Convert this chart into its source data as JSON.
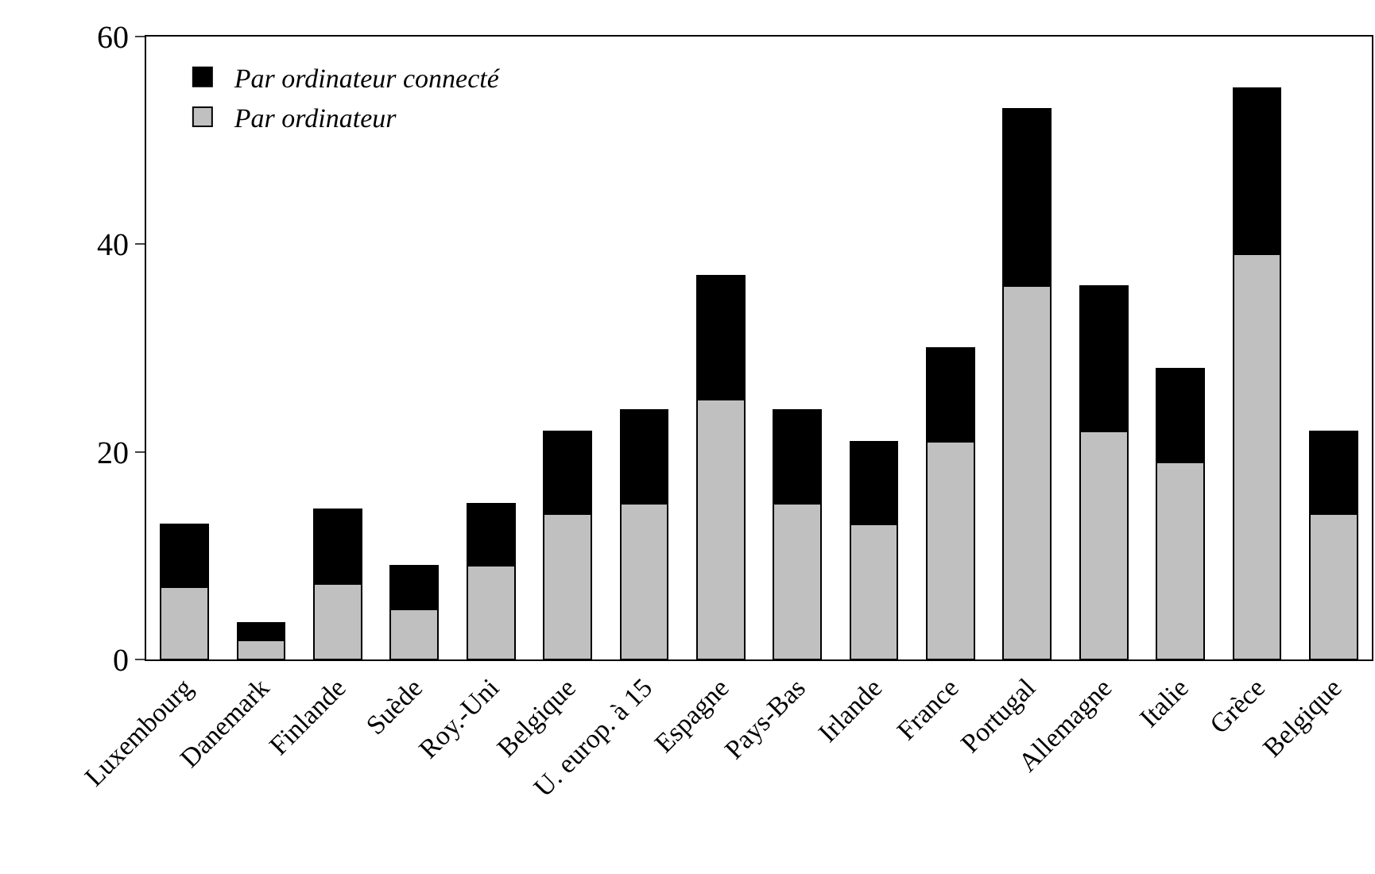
{
  "chart_data": {
    "type": "bar",
    "stacked": true,
    "categories": [
      "Luxembourg",
      "Danemark",
      "Finlande",
      "Suède",
      "Roy.-Uni",
      "Belgique",
      "U. europ. à 15",
      "Espagne",
      "Pays-Bas",
      "Irlande",
      "France",
      "Portugal",
      "Allemagne",
      "Italie",
      "Grèce",
      "Belgique"
    ],
    "series": [
      {
        "name": "Par ordinateur",
        "color": "#c0c0c0",
        "values": [
          7,
          1.8,
          7.3,
          4.8,
          9,
          14,
          15,
          25,
          15,
          13,
          21,
          36,
          22,
          19,
          39,
          14
        ]
      },
      {
        "name": "Par ordinateur connecté",
        "color": "#000000",
        "values": [
          6,
          1.7,
          7.2,
          4.2,
          6,
          8,
          9,
          12,
          9,
          8,
          9,
          17,
          14,
          9,
          16,
          8
        ]
      }
    ],
    "ylim": [
      0,
      60
    ],
    "yticks": [
      0,
      20,
      40,
      60
    ],
    "grid": false,
    "legend": "top left"
  }
}
